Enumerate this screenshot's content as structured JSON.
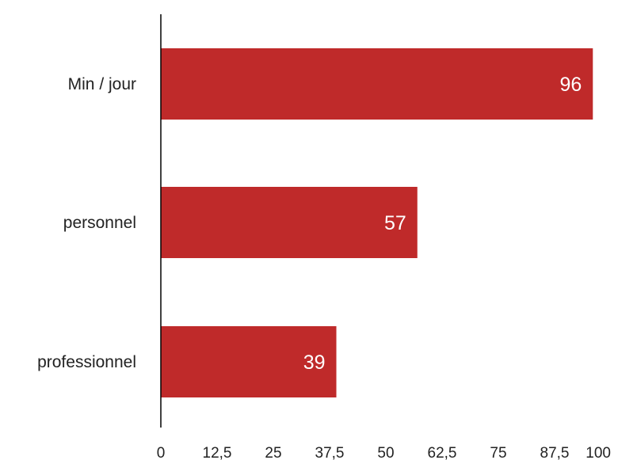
{
  "chart_data": {
    "type": "bar",
    "orientation": "horizontal",
    "title": "",
    "xlabel": "",
    "ylabel": "",
    "categories": [
      "Min / jour",
      "personnel",
      "professionnel"
    ],
    "values": [
      96,
      57,
      39
    ],
    "data_labels": [
      "96",
      "57",
      "39"
    ],
    "xlim": [
      0,
      100
    ],
    "xticks": [
      "0",
      "12,5",
      "25",
      "37,5",
      "50",
      "62,5",
      "75",
      "87,5",
      "100"
    ],
    "grid": false,
    "legend": "none",
    "bar_color": "#bf2a2a",
    "label_color": "#ffffff"
  }
}
